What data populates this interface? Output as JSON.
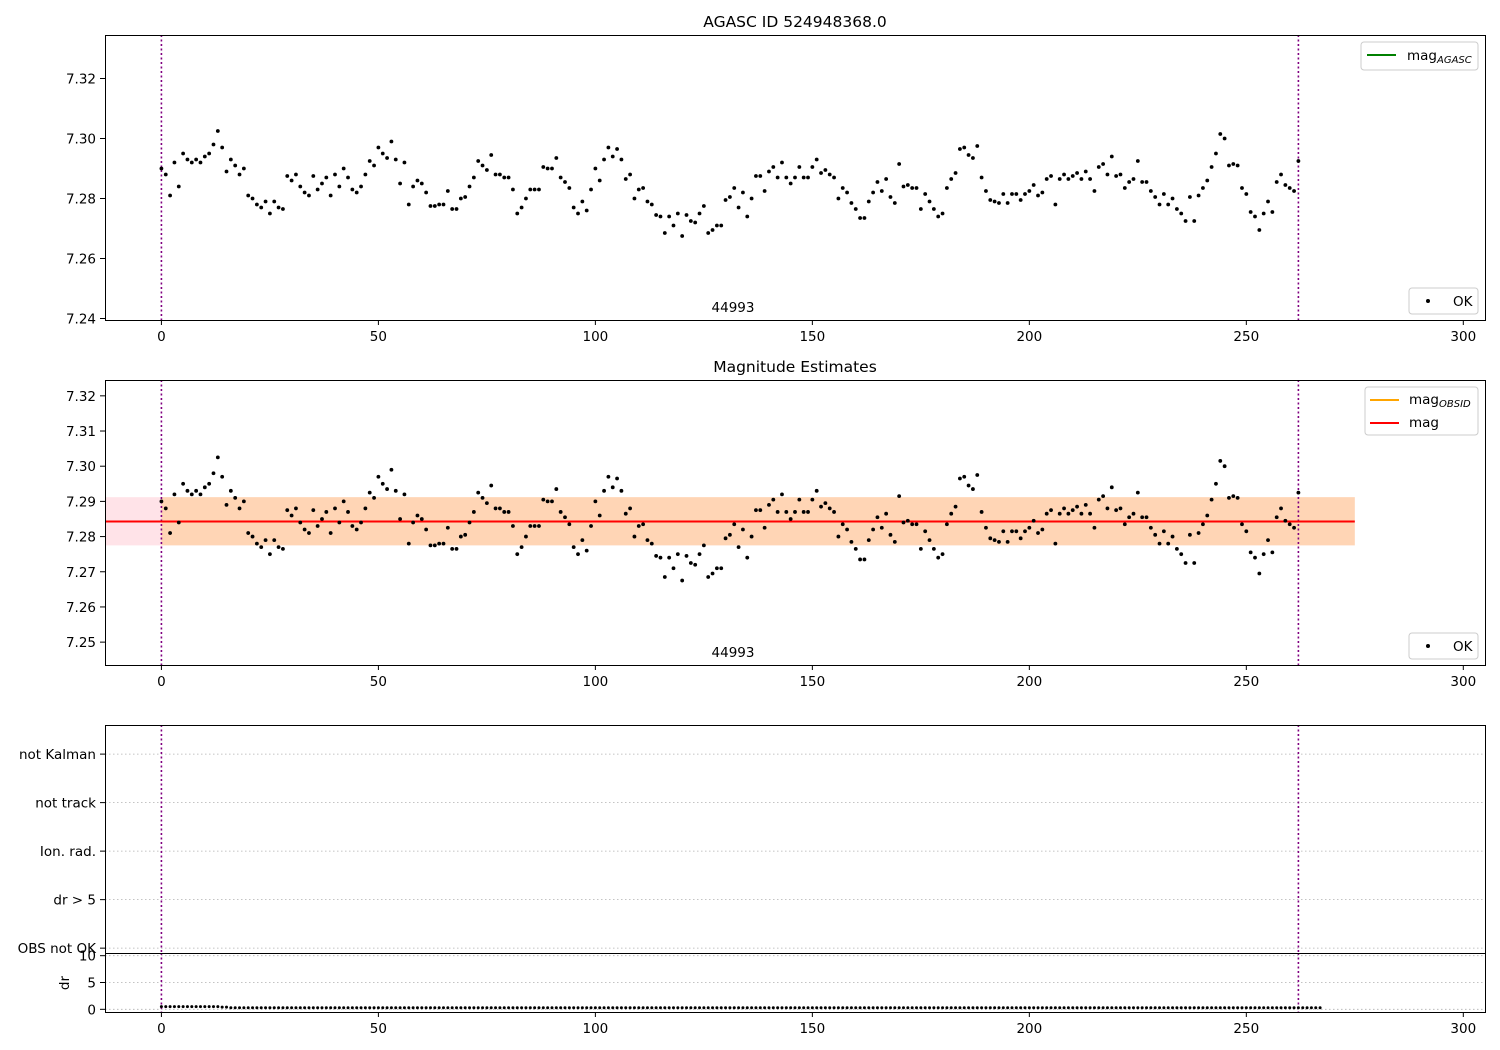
{
  "colors": {
    "points": "#000000",
    "mag_agasc": "#008000",
    "mag_obsid": "#ffa500",
    "mag": "#ff0000",
    "band_mag": "#ffc0cb",
    "band_obsid": "#ffa500",
    "obs_bounds": "#800080",
    "grid": "#b0b0b0"
  },
  "chart_data": [
    {
      "type": "scatter",
      "title": "AGASC ID 524948368.0",
      "xlim": [
        -13,
        305
      ],
      "ylim": [
        7.2395,
        7.3345
      ],
      "xticks": [
        0,
        50,
        100,
        150,
        200,
        250,
        300
      ],
      "yticks": [
        7.24,
        7.26,
        7.28,
        7.3,
        7.32
      ],
      "legend_upper": {
        "placement": "top-right",
        "entries": [
          {
            "label": "mag",
            "subscript": "AGASC",
            "style": "line",
            "color_key": "mag_agasc"
          }
        ]
      },
      "legend_lower": {
        "placement": "bottom-right",
        "entries": [
          {
            "label": "OK",
            "style": "point"
          }
        ]
      },
      "annotation": "44993",
      "obs_bounds_x": [
        0,
        262
      ],
      "series": [
        {
          "name": "OK",
          "x_start": 0,
          "x_step": 1,
          "values_ref": "mag_series"
        }
      ]
    },
    {
      "type": "scatter",
      "title": "Magnitude Estimates",
      "xlim": [
        -13,
        305
      ],
      "ylim": [
        7.2435,
        7.3245
      ],
      "xticks": [
        0,
        50,
        100,
        150,
        200,
        250,
        300
      ],
      "yticks": [
        7.25,
        7.26,
        7.27,
        7.28,
        7.29,
        7.3,
        7.31,
        7.32
      ],
      "legend_upper": {
        "placement": "top-right",
        "entries": [
          {
            "label": "mag",
            "subscript": "OBSID",
            "style": "line",
            "color_key": "mag_obsid"
          },
          {
            "label": "mag",
            "subscript": "",
            "style": "line",
            "color_key": "mag"
          }
        ]
      },
      "legend_lower": {
        "placement": "bottom-right",
        "entries": [
          {
            "label": "OK",
            "style": "point"
          }
        ]
      },
      "annotation": "44993",
      "obs_bounds_x": [
        0,
        262
      ],
      "mag_line": {
        "value": 7.2843,
        "x_range": [
          -13,
          275
        ]
      },
      "mag_band": {
        "low": 7.2775,
        "high": 7.2912,
        "x_range": [
          -13,
          275
        ]
      },
      "obsid_band": {
        "low": 7.2775,
        "high": 7.2912,
        "x_range": [
          0,
          275
        ]
      },
      "series": [
        {
          "name": "OK",
          "x_start": 0,
          "x_step": 1,
          "values_ref": "mag_series"
        }
      ]
    },
    {
      "type": "scatter",
      "title": "",
      "categories": [
        "OBS not OK",
        "dr > 5",
        "Ion. rad.",
        "not track",
        "not Kalman"
      ],
      "xlim": [
        -13,
        305
      ],
      "ylim": [
        -0.1,
        4.6
      ],
      "obs_bounds_x": [
        0,
        262
      ],
      "series": []
    },
    {
      "type": "scatter",
      "title": "",
      "ylabel": "dr",
      "xlim": [
        -13,
        305
      ],
      "ylim": [
        -0.5,
        10.5
      ],
      "xticks": [
        0,
        50,
        100,
        150,
        200,
        250,
        300
      ],
      "yticks": [
        0,
        5,
        10
      ],
      "obs_bounds_x": [
        0,
        262
      ],
      "series": [
        {
          "name": "dr",
          "x_start": 0,
          "x_step": 1,
          "values": [
            0.5,
            0.5,
            0.5,
            0.5,
            0.5,
            0.5,
            0.5,
            0.5,
            0.5,
            0.5,
            0.5,
            0.5,
            0.5,
            0.5,
            0.4,
            0.4,
            0.3,
            0.3,
            0.3,
            0.3,
            0.3,
            0.3,
            0.3,
            0.3,
            0.3,
            0.3,
            0.3,
            0.3,
            0.3,
            0.3,
            0.3,
            0.3,
            0.3,
            0.3,
            0.3,
            0.3,
            0.3,
            0.3,
            0.3,
            0.3,
            0.3,
            0.3,
            0.3,
            0.3,
            0.3,
            0.3,
            0.3,
            0.3,
            0.3,
            0.3,
            0.3,
            0.3,
            0.3,
            0.3,
            0.3,
            0.3,
            0.3,
            0.3,
            0.3,
            0.3,
            0.3,
            0.3,
            0.3,
            0.3,
            0.3,
            0.3,
            0.3,
            0.3,
            0.3,
            0.3,
            0.3,
            0.3,
            0.3,
            0.3,
            0.3,
            0.3,
            0.3,
            0.3,
            0.3,
            0.3,
            0.3,
            0.3,
            0.3,
            0.3,
            0.3,
            0.3,
            0.3,
            0.3,
            0.3,
            0.3,
            0.3,
            0.3,
            0.3,
            0.3,
            0.3,
            0.3,
            0.3,
            0.3,
            0.3,
            0.3,
            0.3,
            0.3,
            0.3,
            0.3,
            0.3,
            0.3,
            0.3,
            0.3,
            0.3,
            0.3,
            0.3,
            0.3,
            0.3,
            0.3,
            0.3,
            0.3,
            0.3,
            0.3,
            0.3,
            0.3,
            0.3,
            0.3,
            0.3,
            0.3,
            0.3,
            0.3,
            0.3,
            0.3,
            0.3,
            0.3,
            0.3,
            0.3,
            0.3,
            0.3,
            0.3,
            0.3,
            0.3,
            0.3,
            0.3,
            0.3,
            0.3,
            0.3,
            0.3,
            0.3,
            0.3,
            0.3,
            0.3,
            0.3,
            0.3,
            0.3,
            0.3,
            0.3,
            0.3,
            0.3,
            0.3,
            0.3,
            0.3,
            0.3,
            0.3,
            0.3,
            0.3,
            0.3,
            0.3,
            0.3,
            0.3,
            0.3,
            0.3,
            0.3,
            0.3,
            0.3,
            0.3,
            0.3,
            0.3,
            0.3,
            0.3,
            0.3,
            0.3,
            0.3,
            0.3,
            0.3,
            0.3,
            0.3,
            0.3,
            0.3,
            0.3,
            0.3,
            0.3,
            0.3,
            0.3,
            0.3,
            0.3,
            0.3,
            0.3,
            0.3,
            0.3,
            0.3,
            0.3,
            0.3,
            0.3,
            0.3,
            0.3,
            0.3,
            0.3,
            0.3,
            0.3,
            0.3,
            0.3,
            0.3,
            0.3,
            0.3,
            0.3,
            0.3,
            0.3,
            0.3,
            0.3,
            0.3,
            0.3,
            0.3,
            0.3,
            0.3,
            0.3,
            0.3,
            0.3,
            0.3,
            0.3,
            0.3,
            0.3,
            0.3,
            0.3,
            0.3,
            0.3,
            0.3,
            0.3,
            0.3,
            0.3,
            0.3,
            0.3,
            0.3,
            0.3,
            0.3,
            0.3,
            0.3,
            0.3,
            0.3,
            0.3,
            0.3,
            0.3,
            0.3,
            0.3,
            0.3,
            0.3,
            0.3,
            0.3,
            0.3,
            0.3,
            0.3,
            0.3,
            0.3,
            0.3,
            0.3,
            0.3,
            0.3,
            0.3,
            0.3,
            0.3,
            0.3,
            0.3,
            0.3
          ]
        }
      ]
    }
  ],
  "mag_series": [
    7.29,
    7.288,
    7.281,
    7.292,
    7.284,
    7.295,
    7.293,
    7.292,
    7.293,
    7.292,
    7.294,
    7.295,
    7.298,
    7.3025,
    7.297,
    7.289,
    7.293,
    7.291,
    7.288,
    7.29,
    7.281,
    7.28,
    7.278,
    7.277,
    7.279,
    7.275,
    7.279,
    7.277,
    7.2765,
    7.2875,
    7.286,
    7.288,
    7.284,
    7.282,
    7.281,
    7.2875,
    7.283,
    7.285,
    7.287,
    7.281,
    7.288,
    7.284,
    7.29,
    7.287,
    7.283,
    7.282,
    7.284,
    7.288,
    7.2925,
    7.291,
    7.297,
    7.295,
    7.2935,
    7.299,
    7.293,
    7.285,
    7.292,
    7.278,
    7.284,
    7.286,
    7.285,
    7.282,
    7.2775,
    7.2775,
    7.278,
    7.278,
    7.2825,
    7.2765,
    7.2765,
    7.28,
    7.2805,
    7.284,
    7.287,
    7.2925,
    7.291,
    7.2895,
    7.2945,
    7.288,
    7.288,
    7.287,
    7.287,
    7.283,
    7.275,
    7.277,
    7.28,
    7.283,
    7.283,
    7.283,
    7.2905,
    7.29,
    7.29,
    7.2935,
    7.287,
    7.2855,
    7.2835,
    7.277,
    7.275,
    7.279,
    7.276,
    7.283,
    7.29,
    7.286,
    7.293,
    7.297,
    7.294,
    7.2965,
    7.293,
    7.2865,
    7.288,
    7.28,
    7.283,
    7.2835,
    7.279,
    7.278,
    7.2745,
    7.274,
    7.2685,
    7.274,
    7.271,
    7.275,
    7.2675,
    7.2745,
    7.2725,
    7.272,
    7.275,
    7.2775,
    7.2685,
    7.2695,
    7.271,
    7.271,
    7.2795,
    7.2805,
    7.2835,
    7.277,
    7.282,
    7.274,
    7.28,
    7.2875,
    7.2875,
    7.2825,
    7.289,
    7.2905,
    7.287,
    7.292,
    7.287,
    7.285,
    7.287,
    7.2905,
    7.287,
    7.287,
    7.2905,
    7.293,
    7.2885,
    7.2895,
    7.288,
    7.287,
    7.28,
    7.2835,
    7.282,
    7.2785,
    7.2765,
    7.2735,
    7.2735,
    7.279,
    7.282,
    7.2855,
    7.2825,
    7.2865,
    7.2805,
    7.2785,
    7.2915,
    7.284,
    7.2845,
    7.2835,
    7.2835,
    7.2765,
    7.2815,
    7.279,
    7.2765,
    7.274,
    7.275,
    7.2835,
    7.2865,
    7.2885,
    7.2965,
    7.297,
    7.2945,
    7.2935,
    7.2975,
    7.287,
    7.2825,
    7.2795,
    7.279,
    7.2785,
    7.2815,
    7.2785,
    7.2815,
    7.2815,
    7.2795,
    7.2815,
    7.2825,
    7.2845,
    7.281,
    7.282,
    7.2865,
    7.2875,
    7.278,
    7.2865,
    7.288,
    7.2865,
    7.2875,
    7.2885,
    7.2865,
    7.289,
    7.2865,
    7.2825,
    7.2905,
    7.2915,
    7.288,
    7.294,
    7.2875,
    7.288,
    7.2835,
    7.2855,
    7.2865,
    7.2925,
    7.2855,
    7.2855,
    7.2825,
    7.2805,
    7.278,
    7.2815,
    7.278,
    7.28,
    7.2765,
    7.275,
    7.2725,
    7.2805,
    7.2725,
    7.281,
    7.2835,
    7.286,
    7.2905,
    7.295,
    7.3015,
    7.3,
    7.291,
    7.2915,
    7.291,
    7.2835,
    7.2815,
    7.2755,
    7.274,
    7.2695,
    7.275,
    7.279,
    7.2755,
    7.2855,
    7.288,
    7.2845,
    7.2835,
    7.2825,
    7.2925
  ]
}
